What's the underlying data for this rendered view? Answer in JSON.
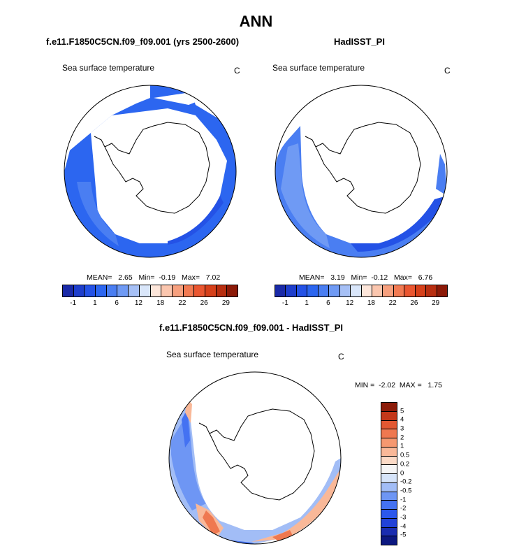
{
  "main_title": "ANN",
  "panels": [
    {
      "title": "f.e11.F1850C5CN.f09_f09.001 (yrs 2500-2600)",
      "variable": "Sea surface temperature",
      "units": "C",
      "stats": {
        "mean_label": "MEAN=",
        "mean": "2.65",
        "min_label": "Min=",
        "min": "-0.19",
        "max_label": "Max=",
        "max": "7.02"
      }
    },
    {
      "title": "HadISST_PI",
      "variable": "Sea surface temperature",
      "units": "C",
      "stats": {
        "mean_label": "MEAN=",
        "mean": "3.19",
        "min_label": "Min=",
        "min": "-0.12",
        "max_label": "Max=",
        "max": "6.76"
      }
    },
    {
      "title": "f.e11.F1850C5CN.f09_f09.001 - HadISST_PI",
      "variable": "Sea surface temperature",
      "units": "C",
      "stats": {
        "min_label": "MIN =",
        "min": "-2.02",
        "max_label": "MAX =",
        "max": "1.75"
      }
    }
  ],
  "abs_colorbar": {
    "colors": [
      "#1a2aa8",
      "#1e3ecc",
      "#2452e6",
      "#2c66f0",
      "#4a7ef2",
      "#6f9af4",
      "#a6c0f6",
      "#d9e6fa",
      "#fde6da",
      "#fbc6ae",
      "#f7a07e",
      "#f27a52",
      "#ea5630",
      "#d6401a",
      "#b82e10",
      "#8c1a08"
    ],
    "tick_labels": [
      "-1",
      "1",
      "6",
      "12",
      "18",
      "22",
      "26",
      "29"
    ]
  },
  "diff_colorbar": {
    "colors": [
      "#0c1880",
      "#1a2db0",
      "#2242d8",
      "#2c58ec",
      "#4472f2",
      "#6e96f4",
      "#a2bdf6",
      "#d6e4f9",
      "#f5f5f5",
      "#fbdac6",
      "#f9b898",
      "#f59870",
      "#ef7850",
      "#e25832",
      "#c4381a",
      "#8c1c0a"
    ],
    "tick_labels": [
      "5",
      "4",
      "3",
      "2",
      "1",
      "0.5",
      "0.2",
      "0",
      "-0.2",
      "-0.5",
      "-1",
      "-2",
      "-3",
      "-4",
      "-5"
    ]
  }
}
